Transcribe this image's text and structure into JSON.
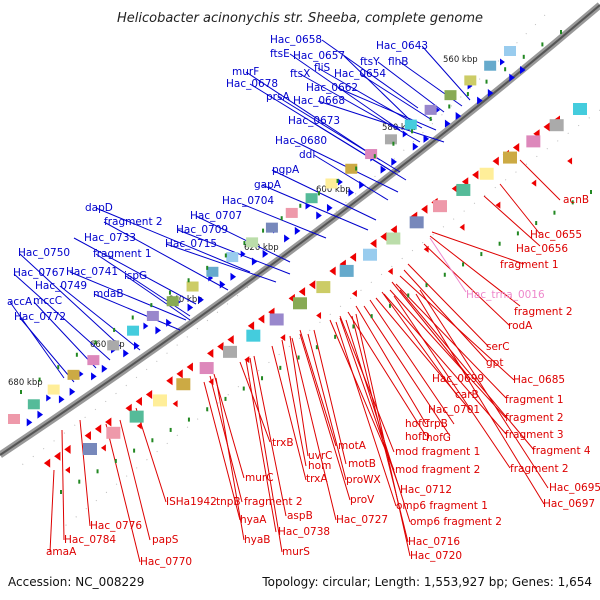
{
  "title": "Helicobacter acinonychis str. Sheeba, complete genome",
  "footer": {
    "accession": "Accession: NC_008229",
    "summary": "Topology: circular; Length: 1,553,927 bp; Genes: 1,654"
  },
  "colors": {
    "forward_label": "#0000cc",
    "reverse_label": "#dd0000",
    "rna_label": "#ee88cc",
    "forward_arrow": "#0000ee",
    "reverse_arrow": "#ee0000",
    "backbone": "#888888",
    "tick_dot": "#228822"
  },
  "ruler": [
    "560 kbp",
    "580 kbp",
    "600 kbp",
    "620 kbp",
    "640 kbp",
    "660 kbp",
    "680 kbp"
  ],
  "forward_labels": [
    "Hac_0658",
    "Hac_0643",
    "ftsE",
    "Hac_0657",
    "ftsY",
    "flhB",
    "murF",
    "fliS",
    "ftsX",
    "Hac_0654",
    "Hac_0678",
    "Hac_0662",
    "prsA",
    "Hac_0668",
    "Hac_0673",
    "Hac_0680",
    "ddl",
    "pgpA",
    "gapA",
    "Hac_0704",
    "dapD",
    "Hac_0707",
    "fragment 2",
    "Hac_0709",
    "Hac_0733",
    "Hac_0715",
    "fragment 1",
    "Hac_0750",
    "Hac_0741",
    "ispG",
    "Hac_0767",
    "mdaB",
    "Hac_0749",
    "accA",
    "mccC",
    "Hac_0772"
  ],
  "reverse_labels": [
    "acnB",
    "Hac_0655",
    "Hac_0656",
    "fragment 1",
    "fragment 2",
    "rodA",
    "serC",
    "gpt",
    "Hac_0699",
    "Hac_0685",
    "carB",
    "Hac_0701",
    "fragment 1",
    "fragment 2",
    "hofC",
    "frpB",
    "fragment 3",
    "hofD",
    "hofG",
    "fragment 4",
    "motA",
    "mod fragment 1",
    "trxB",
    "uvrC",
    "fragment 2",
    "motB",
    "hom",
    "mod fragment 2",
    "Hac_0695",
    "trxA",
    "proWX",
    "Hac_0712",
    "Hac_0697",
    "murC",
    "proV",
    "omp6 fragment 1",
    "ISHa1942",
    "tnpB fragment 2",
    "aspB",
    "Hac_0727",
    "omp6 fragment 2",
    "hyaA",
    "Hac_0738",
    "Hac_0776",
    "hyaB",
    "murS",
    "Hac_0716",
    "Hac_0784",
    "papS",
    "Hac_0720",
    "amaA",
    "Hac_0770"
  ],
  "rna_labels": [
    "Hac_trna_0016"
  ]
}
